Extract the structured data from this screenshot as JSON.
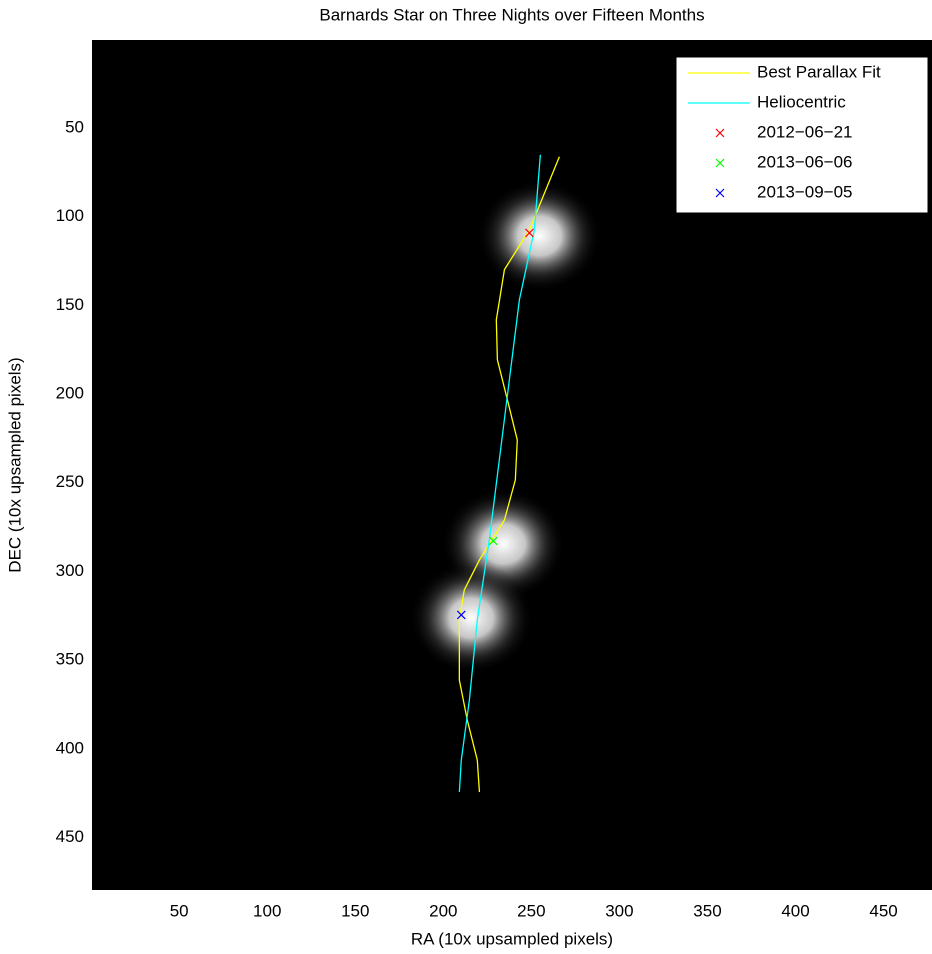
{
  "chart_data": {
    "type": "line",
    "title": "Barnards Star on Three Nights over Fifteen Months",
    "x_label": "RA   (10x upsampled pixels)",
    "y_label": "DEC   (10x upsampled pixels)",
    "xlim": [
      0.5,
      477.5
    ],
    "ylim": [
      0.5,
      479.5
    ],
    "y_reversed": true,
    "xticks": [
      50,
      100,
      150,
      200,
      250,
      300,
      350,
      400,
      450
    ],
    "yticks": [
      50,
      100,
      150,
      200,
      250,
      300,
      350,
      400,
      450
    ],
    "legend": "upper right",
    "series": [
      {
        "name": "Best Parallax Fit",
        "color": "#ffff00",
        "x": [
          265.9,
          248.9,
          234.7,
          230.1,
          230.7,
          236.4,
          242.0,
          240.9,
          234.7,
          220.5,
          211.9,
          209.1,
          209.1,
          213.6,
          219.3,
          220.5
        ],
        "values": [
          66.3,
          107.5,
          129.9,
          158.2,
          180.7,
          203.3,
          225.9,
          248.4,
          271.0,
          293.5,
          310.4,
          327.3,
          361.2,
          383.7,
          406.3,
          424.3
        ]
      },
      {
        "name": "Heliocentric",
        "color": "#00ffff",
        "x": [
          255.1,
          251.7,
          243.2,
          237.5,
          231.8,
          226.1,
          219.3,
          214.8,
          210.2,
          209.1
        ],
        "values": [
          65.2,
          107.5,
          146.9,
          192.0,
          237.1,
          282.2,
          327.3,
          372.4,
          406.3,
          424.3
        ]
      },
      {
        "name": "2012−06−21",
        "color": "#ff0000",
        "marker": "x",
        "x": [
          248.9
        ],
        "values": [
          109.2
        ]
      },
      {
        "name": "2013−06−06",
        "color": "#00ff00",
        "marker": "x",
        "x": [
          228.4
        ],
        "values": [
          282.8
        ]
      },
      {
        "name": "2013−09−05",
        "color": "#0000ff",
        "marker": "x",
        "x": [
          210.2
        ],
        "values": [
          324.5
        ]
      }
    ]
  }
}
